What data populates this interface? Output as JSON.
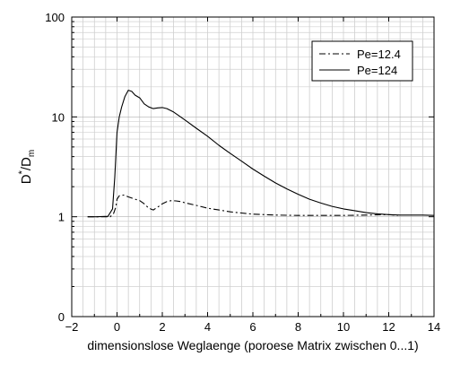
{
  "chart_data": {
    "type": "line",
    "title": "",
    "xlabel": "dimensionslose Weglaenge (poroese Matrix zwischen 0...1)",
    "ylabel": {
      "base": "D",
      "super": "*",
      "mid": "/D",
      "sub": "m"
    },
    "xlim": [
      -2,
      14
    ],
    "ylim_log": [
      1,
      100
    ],
    "y_bottom_tick_label": "0",
    "x_ticks": [
      -2,
      0,
      2,
      4,
      6,
      8,
      10,
      12,
      14
    ],
    "x_tick_labels": [
      "−2",
      "0",
      "2",
      "4",
      "6",
      "8",
      "10",
      "12",
      "14"
    ],
    "y_ticks": [
      {
        "label": "100",
        "value": 100
      },
      {
        "label": "10",
        "value": 10
      },
      {
        "label": "1",
        "value": 1
      },
      {
        "label": "0",
        "value": 0.1
      }
    ],
    "grid": true,
    "legend_position": "top-right",
    "series": [
      {
        "name": "Pe=12.4",
        "style": "dashdot",
        "x": [
          -1.3,
          -0.8,
          -0.3,
          -0.15,
          -0.05,
          0.0,
          0.1,
          0.3,
          0.5,
          0.8,
          1.0,
          1.2,
          1.4,
          1.6,
          1.8,
          2.0,
          2.2,
          2.4,
          2.6,
          2.8,
          3.0,
          3.5,
          4.0,
          4.5,
          5.0,
          5.5,
          6.0,
          7.0,
          8.0,
          9.0,
          10.0,
          11.0,
          12.0,
          12.4
        ],
        "y": [
          1.0,
          1.0,
          1.0,
          1.08,
          1.25,
          1.5,
          1.62,
          1.65,
          1.58,
          1.5,
          1.45,
          1.35,
          1.22,
          1.17,
          1.25,
          1.35,
          1.42,
          1.45,
          1.44,
          1.42,
          1.38,
          1.3,
          1.22,
          1.17,
          1.12,
          1.09,
          1.06,
          1.04,
          1.03,
          1.03,
          1.03,
          1.04,
          1.05,
          1.03
        ]
      },
      {
        "name": "Pe=124",
        "style": "solid",
        "x": [
          -1.3,
          -0.9,
          -0.4,
          -0.2,
          -0.1,
          0.0,
          0.1,
          0.2,
          0.35,
          0.5,
          0.65,
          0.8,
          1.0,
          1.2,
          1.4,
          1.6,
          1.8,
          2.0,
          2.2,
          2.5,
          3.0,
          3.5,
          4.0,
          4.5,
          5.0,
          5.5,
          6.0,
          6.5,
          7.0,
          7.5,
          8.0,
          8.5,
          9.0,
          9.5,
          10.0,
          10.5,
          11.0,
          11.5,
          12.0,
          12.5,
          13.0,
          13.5,
          14.0
        ],
        "y": [
          1.0,
          1.0,
          1.01,
          1.2,
          2.5,
          7.0,
          10.0,
          12.5,
          16.0,
          18.5,
          18.0,
          16.5,
          15.5,
          13.5,
          12.6,
          12.1,
          12.3,
          12.4,
          12.1,
          11.2,
          9.3,
          7.7,
          6.4,
          5.2,
          4.3,
          3.6,
          3.0,
          2.55,
          2.18,
          1.9,
          1.68,
          1.5,
          1.37,
          1.27,
          1.2,
          1.15,
          1.1,
          1.07,
          1.05,
          1.04,
          1.04,
          1.04,
          1.03
        ]
      }
    ]
  }
}
